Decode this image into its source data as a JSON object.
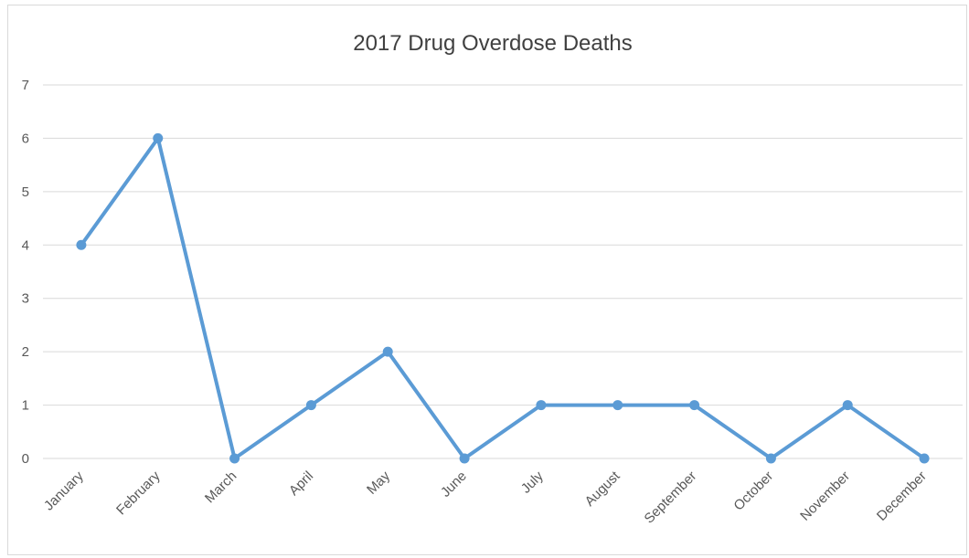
{
  "chart_data": {
    "type": "line",
    "title": "2017 Drug Overdose Deaths",
    "xlabel": "",
    "ylabel": "",
    "categories": [
      "January",
      "February",
      "March",
      "April",
      "May",
      "June",
      "July",
      "August",
      "September",
      "October",
      "November",
      "December"
    ],
    "series": [
      {
        "values": [
          4,
          6,
          0,
          1,
          2,
          0,
          1,
          1,
          1,
          0,
          1,
          0
        ],
        "color": "#5b9bd5"
      }
    ],
    "ylim": [
      0,
      7
    ],
    "yticks": [
      0,
      1,
      2,
      3,
      4,
      5,
      6,
      7
    ],
    "grid": true,
    "gridlines_color": "#d9d9d9",
    "legend": "none",
    "markers": "circle"
  }
}
